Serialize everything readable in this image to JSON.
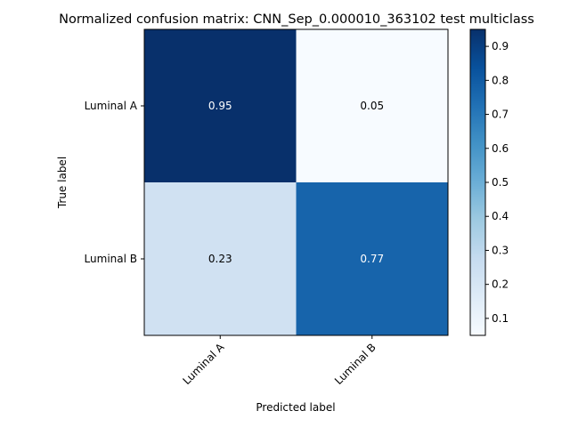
{
  "chart_data": {
    "type": "heatmap",
    "title": "Normalized confusion matrix: CNN_Sep_0.000010_363102 test multiclass",
    "xlabel": "Predicted label",
    "ylabel": "True label",
    "x_categories": [
      "Luminal A",
      "Luminal B"
    ],
    "y_categories": [
      "Luminal A",
      "Luminal B"
    ],
    "values": [
      [
        0.95,
        0.05
      ],
      [
        0.23,
        0.77
      ]
    ],
    "cell_labels": [
      [
        "0.95",
        "0.05"
      ],
      [
        "0.23",
        "0.77"
      ]
    ],
    "colormap": "Blues",
    "colorbar": {
      "range": [
        0.05,
        0.95
      ],
      "ticks": [
        0.1,
        0.2,
        0.3,
        0.4,
        0.5,
        0.6,
        0.7,
        0.8,
        0.9
      ],
      "tick_labels": [
        "0.1",
        "0.2",
        "0.3",
        "0.4",
        "0.5",
        "0.6",
        "0.7",
        "0.8",
        "0.9"
      ]
    },
    "grid": false
  }
}
